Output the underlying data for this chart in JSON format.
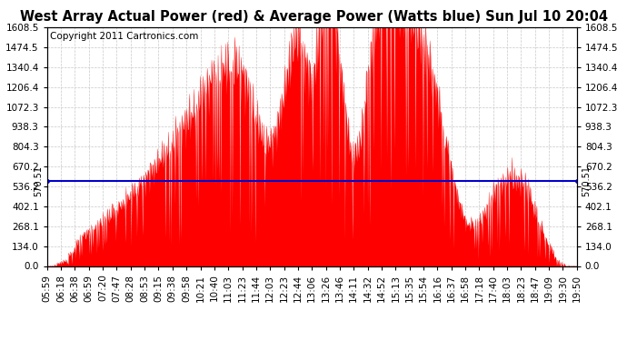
{
  "title": "West Array Actual Power (red) & Average Power (Watts blue) Sun Jul 10 20:04",
  "copyright": "Copyright 2011 Cartronics.com",
  "average_power": 570.51,
  "y_ticks": [
    0.0,
    134.0,
    268.1,
    402.1,
    536.2,
    670.2,
    804.3,
    938.3,
    1072.3,
    1206.4,
    1340.4,
    1474.5,
    1608.5
  ],
  "ylim": [
    0,
    1608.5
  ],
  "x_labels": [
    "05:59",
    "06:18",
    "06:38",
    "06:59",
    "07:20",
    "07:47",
    "08:28",
    "08:53",
    "09:15",
    "09:38",
    "09:58",
    "10:21",
    "10:40",
    "11:03",
    "11:23",
    "11:44",
    "12:03",
    "12:23",
    "12:44",
    "13:06",
    "13:26",
    "13:46",
    "14:11",
    "14:32",
    "14:52",
    "15:13",
    "15:35",
    "15:54",
    "16:16",
    "16:37",
    "16:58",
    "17:18",
    "17:40",
    "18:03",
    "18:23",
    "18:47",
    "19:09",
    "19:30",
    "19:50"
  ],
  "background_color": "#ffffff",
  "plot_bg_color": "#ffffff",
  "grid_color": "#c8c8c8",
  "fill_color": "#ff0000",
  "line_color": "#0000cc",
  "title_fontsize": 10.5,
  "copyright_fontsize": 7.5,
  "tick_fontsize": 7.5
}
